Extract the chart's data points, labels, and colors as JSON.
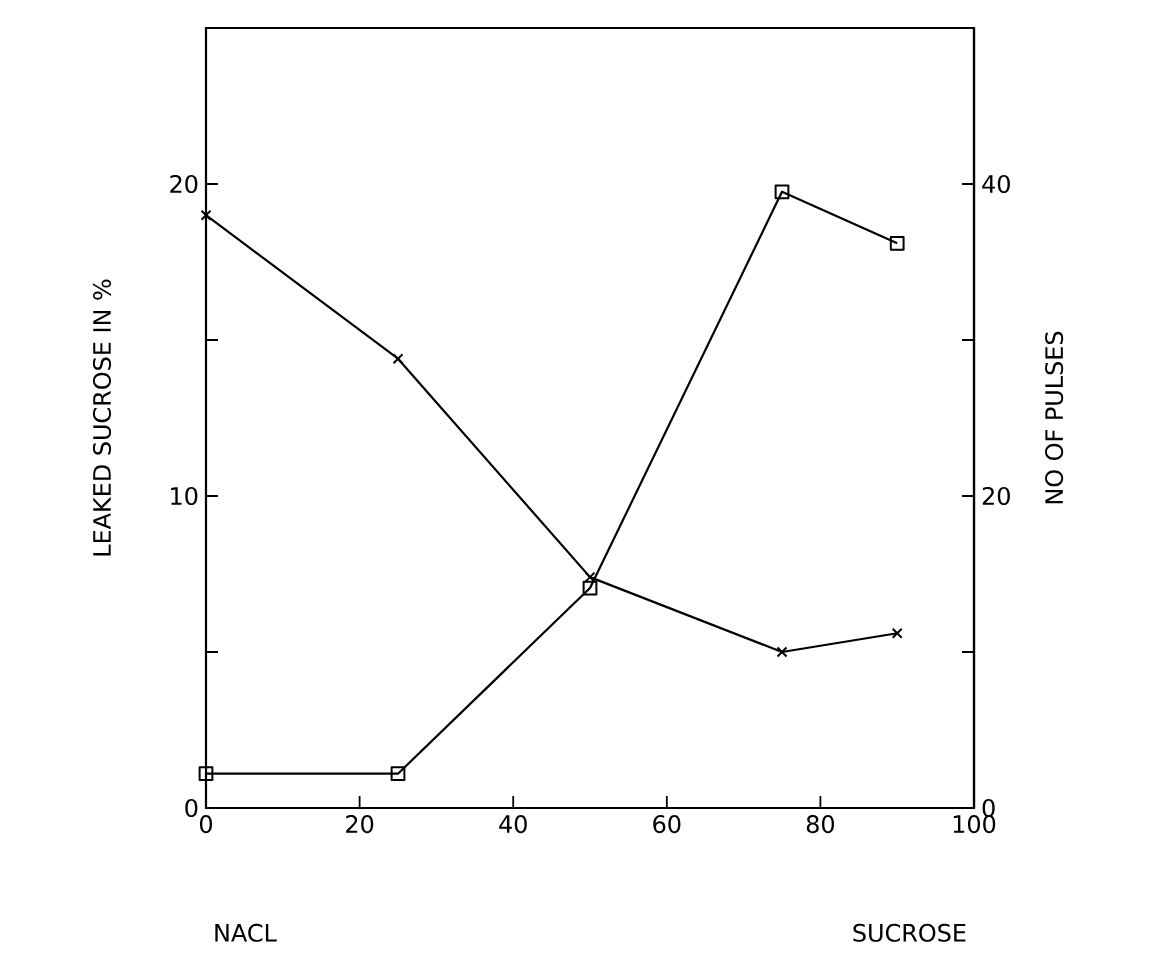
{
  "chart_data": {
    "type": "line",
    "ylabel": "LEAKED SUCROSE IN %",
    "y2label": "NO OF PULSES",
    "annotations": [
      "NACL",
      "SUCROSE"
    ],
    "x": [
      0,
      25,
      50,
      75,
      90
    ],
    "xlim": [
      0,
      100
    ],
    "xticks": [
      0,
      20,
      40,
      60,
      80,
      100
    ],
    "ylim": [
      0,
      25
    ],
    "yticks": [
      0,
      {
        "value": 5,
        "label": null
      },
      10,
      {
        "value": 15,
        "label": null
      },
      20
    ],
    "y2lim": [
      0,
      50
    ],
    "y2ticks": [
      0,
      {
        "value": 10,
        "label": null
      },
      20,
      {
        "value": 30,
        "label": null
      },
      40
    ],
    "series": [
      {
        "color": "#000000",
        "marker": "cross",
        "values": [
          19.0,
          14.4,
          7.4,
          5.0,
          5.6
        ]
      },
      {
        "color": "#000000",
        "marker": "square",
        "axis": "y2",
        "values": [
          2.2,
          2.2,
          14.1,
          39.5,
          36.2
        ]
      }
    ]
  }
}
